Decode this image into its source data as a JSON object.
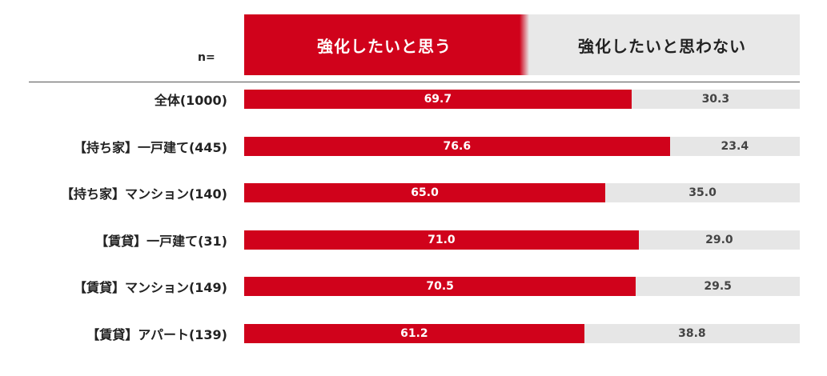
{
  "chart_data": {
    "type": "bar",
    "orientation": "horizontal",
    "stacked": true,
    "sample_size_label": "n=",
    "categories": [
      "全体(1000)",
      "【持ち家】一戸建て(445)",
      "【持ち家】マンション(140)",
      "【賃貸】一戸建て(31)",
      "【賃貸】マンション(149)",
      "【賃貸】アパート(139)"
    ],
    "series": [
      {
        "name": "強化したいと思う",
        "color": "#d0021b",
        "values": [
          69.7,
          76.6,
          65.0,
          71.0,
          70.5,
          61.2
        ]
      },
      {
        "name": "強化したいと思わない",
        "color": "#e6e6e6",
        "values": [
          30.3,
          23.4,
          35.0,
          29.0,
          29.5,
          38.8
        ]
      }
    ],
    "xlim": [
      0,
      100
    ],
    "legend_position": "top",
    "grid": false
  }
}
